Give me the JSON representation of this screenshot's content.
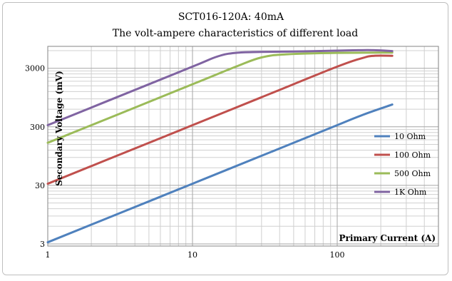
{
  "chart_data": {
    "type": "line",
    "title": "SCT016-120A: 40mA",
    "subtitle": "The volt-ampere characteristics of different load",
    "xlabel": "Primary Current (A)",
    "ylabel": "Secondary Voltage (mV)",
    "xscale": "log",
    "yscale": "log",
    "xlim": [
      1,
      400
    ],
    "ylim": [
      3,
      6000
    ],
    "xticks": [
      {
        "value": 1,
        "label": "1"
      },
      {
        "value": 10,
        "label": "10"
      },
      {
        "value": 100,
        "label": "100"
      }
    ],
    "yticks": [
      {
        "value": 3,
        "label": "3"
      },
      {
        "value": 30,
        "label": "30"
      },
      {
        "value": 300,
        "label": "300"
      },
      {
        "value": 3000,
        "label": "3000"
      }
    ],
    "grid": true,
    "legend_position": "right",
    "series": [
      {
        "name": "10 Ohm",
        "color": "#4f81bd",
        "points": [
          [
            1,
            3.2
          ],
          [
            3,
            9.6
          ],
          [
            10,
            32
          ],
          [
            30,
            96
          ],
          [
            100,
            320
          ],
          [
            150,
            480
          ],
          [
            240,
            720
          ]
        ]
      },
      {
        "name": "100 Ohm",
        "color": "#c0504d",
        "points": [
          [
            1,
            32
          ],
          [
            3,
            96
          ],
          [
            10,
            320
          ],
          [
            30,
            960
          ],
          [
            100,
            3200
          ],
          [
            150,
            4500
          ],
          [
            180,
            4900
          ],
          [
            240,
            4900
          ]
        ]
      },
      {
        "name": "500 Ohm",
        "color": "#9bbb59",
        "points": [
          [
            1,
            160
          ],
          [
            3,
            480
          ],
          [
            10,
            1600
          ],
          [
            20,
            3200
          ],
          [
            30,
            4600
          ],
          [
            45,
            5200
          ],
          [
            100,
            5500
          ],
          [
            240,
            5550
          ]
        ]
      },
      {
        "name": "1K Ohm",
        "color": "#8064a2",
        "points": [
          [
            1,
            320
          ],
          [
            3,
            960
          ],
          [
            10,
            3200
          ],
          [
            15,
            4800
          ],
          [
            20,
            5500
          ],
          [
            30,
            5700
          ],
          [
            50,
            5800
          ],
          [
            100,
            6000
          ],
          [
            140,
            6100
          ],
          [
            180,
            6100
          ],
          [
            240,
            5900
          ]
        ]
      }
    ]
  }
}
